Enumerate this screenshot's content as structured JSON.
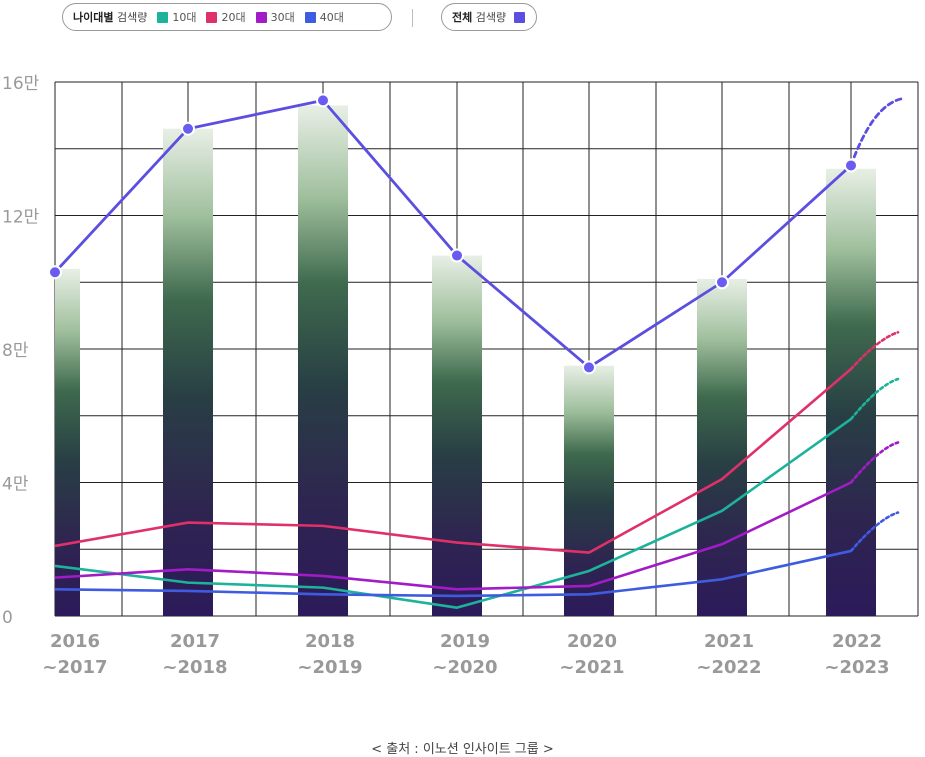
{
  "legend": {
    "age_group_label_bold": "나이대별",
    "age_group_label_rest": " 검색량",
    "items": [
      {
        "label": "10대",
        "color": "#1cb39a"
      },
      {
        "label": "20대",
        "color": "#e0306a"
      },
      {
        "label": "30대",
        "color": "#a11bc6"
      },
      {
        "label": "40대",
        "color": "#3f5ce0"
      }
    ],
    "total_label_bold": "전체",
    "total_label_rest": " 검색량",
    "total_color": "#5b4ee0"
  },
  "source": "< 출처 : 이노션 인사이트 그룹 >",
  "chart_data": {
    "type": "bar",
    "categories": [
      [
        "2016",
        "~2017"
      ],
      [
        "2017",
        "~2018"
      ],
      [
        "2018",
        "~2019"
      ],
      [
        "2019",
        "~2020"
      ],
      [
        "2020",
        "~2021"
      ],
      [
        "2021",
        "~2022"
      ],
      [
        "2022",
        "~2023"
      ]
    ],
    "ylim": [
      0,
      160000
    ],
    "yticks": [
      {
        "value": 0,
        "label": "0"
      },
      {
        "value": 40000,
        "label": "4만"
      },
      {
        "value": 80000,
        "label": "8만"
      },
      {
        "value": 120000,
        "label": "12만"
      },
      {
        "value": 160000,
        "label": "16만"
      }
    ],
    "grid": true,
    "bars": [
      104000,
      146000,
      153000,
      108000,
      75000,
      101000,
      134000
    ],
    "total_line": {
      "color": "#5b4ee0",
      "values": [
        103000,
        146000,
        154500,
        108000,
        74500,
        100000,
        135000
      ],
      "projection": 155000
    },
    "series": [
      {
        "name": "10대",
        "color": "#1cb39a",
        "values": [
          15000,
          10000,
          8500,
          2500,
          13500,
          31500,
          59000
        ],
        "projection": 71000
      },
      {
        "name": "20대",
        "color": "#e0306a",
        "values": [
          21000,
          28000,
          27000,
          22000,
          19000,
          41000,
          74000
        ],
        "projection": 85000
      },
      {
        "name": "30대",
        "color": "#a11bc6",
        "values": [
          11500,
          14000,
          12000,
          8000,
          9000,
          21500,
          40000
        ],
        "projection": 52000
      },
      {
        "name": "40대",
        "color": "#3f5ce0",
        "values": [
          8000,
          7500,
          6500,
          6000,
          6500,
          11000,
          19500
        ],
        "projection": 31000
      }
    ]
  }
}
